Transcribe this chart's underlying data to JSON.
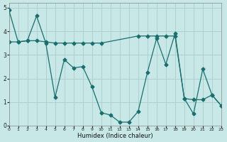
{
  "xlabel": "Humidex (Indice chaleur)",
  "bg_color": "#c8e8e8",
  "line_color": "#1a6e6e",
  "grid_color": "#a8cccc",
  "xlim": [
    0,
    23
  ],
  "ylim": [
    0,
    5.2
  ],
  "xticks": [
    0,
    1,
    2,
    3,
    4,
    5,
    6,
    7,
    8,
    9,
    10,
    11,
    12,
    13,
    14,
    15,
    16,
    17,
    18,
    19,
    20,
    21,
    22,
    23
  ],
  "yticks": [
    0,
    1,
    2,
    3,
    4,
    5
  ],
  "series1_x": [
    0,
    1,
    2,
    3,
    4,
    5,
    6,
    7,
    8,
    9,
    10,
    11,
    12,
    13,
    14,
    15,
    16,
    17,
    18,
    19,
    20,
    21,
    22,
    23
  ],
  "series1_y": [
    4.9,
    3.55,
    3.6,
    4.65,
    3.5,
    1.2,
    2.8,
    2.45,
    2.5,
    1.65,
    0.55,
    0.45,
    0.15,
    0.15,
    0.6,
    2.25,
    3.7,
    2.6,
    3.9,
    1.15,
    0.5,
    2.4,
    1.3,
    0.85
  ],
  "series2_x": [
    0,
    1,
    2,
    3,
    4,
    5,
    6,
    7,
    8,
    9,
    10,
    14,
    15,
    16,
    17,
    18,
    19,
    20,
    21,
    22,
    23
  ],
  "series2_y": [
    3.55,
    3.55,
    3.6,
    3.6,
    3.55,
    3.5,
    3.5,
    3.5,
    3.5,
    3.5,
    3.5,
    3.8,
    3.8,
    3.8,
    3.8,
    3.8,
    1.15,
    1.1,
    1.1,
    1.3,
    0.85
  ],
  "marker": "D",
  "markersize": 2.5,
  "linewidth": 0.9
}
